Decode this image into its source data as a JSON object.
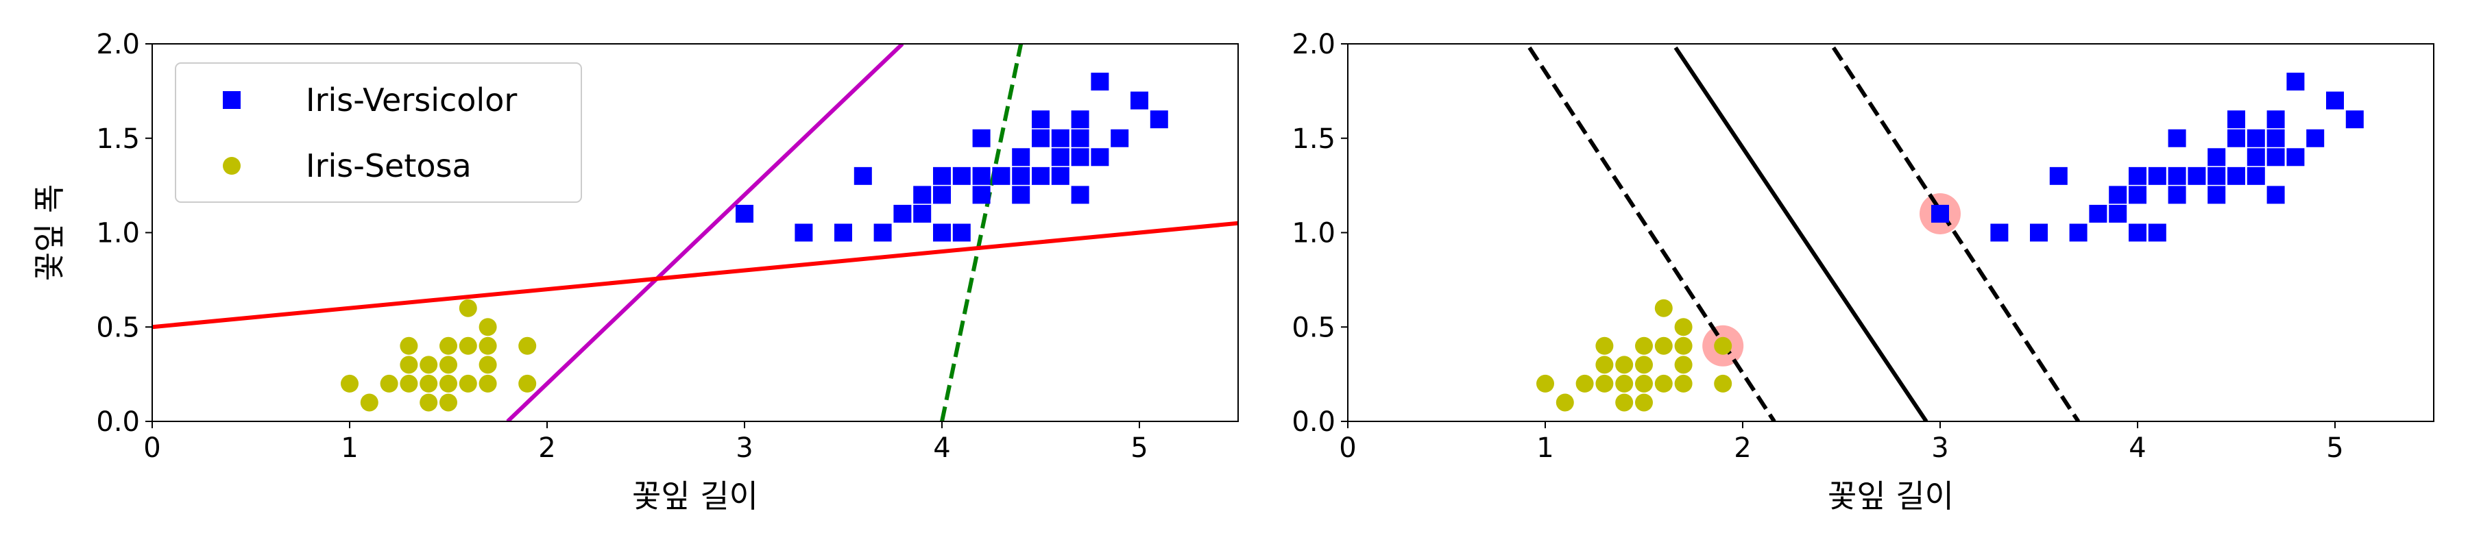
{
  "chart_data": [
    {
      "type": "scatter",
      "title": "",
      "xlabel": "꽃잎 길이",
      "ylabel": "꽃잎 폭",
      "xlim": [
        0,
        5.5
      ],
      "ylim": [
        0,
        2.0
      ],
      "xticks": [
        "0",
        "1",
        "2",
        "3",
        "4",
        "5"
      ],
      "yticks": [
        "0.0",
        "0.5",
        "1.0",
        "1.5",
        "2.0"
      ],
      "grid": false,
      "legend": {
        "placement": "upper-left",
        "entries": [
          "Iris-Versicolor",
          "Iris-Setosa"
        ]
      },
      "series": [
        {
          "name": "Iris-Versicolor",
          "marker": "square",
          "color": "#0000ff",
          "points": [
            [
              3.0,
              1.1
            ],
            [
              3.3,
              1.0
            ],
            [
              3.5,
              1.0
            ],
            [
              3.6,
              1.3
            ],
            [
              3.7,
              1.0
            ],
            [
              3.8,
              1.1
            ],
            [
              3.9,
              1.1
            ],
            [
              3.9,
              1.2
            ],
            [
              4.0,
              1.0
            ],
            [
              4.0,
              1.2
            ],
            [
              4.0,
              1.3
            ],
            [
              4.1,
              1.0
            ],
            [
              4.1,
              1.3
            ],
            [
              4.2,
              1.2
            ],
            [
              4.2,
              1.3
            ],
            [
              4.2,
              1.5
            ],
            [
              4.3,
              1.3
            ],
            [
              4.4,
              1.2
            ],
            [
              4.4,
              1.3
            ],
            [
              4.4,
              1.4
            ],
            [
              4.5,
              1.3
            ],
            [
              4.5,
              1.5
            ],
            [
              4.5,
              1.6
            ],
            [
              4.6,
              1.3
            ],
            [
              4.6,
              1.4
            ],
            [
              4.6,
              1.5
            ],
            [
              4.7,
              1.2
            ],
            [
              4.7,
              1.4
            ],
            [
              4.7,
              1.5
            ],
            [
              4.7,
              1.6
            ],
            [
              4.8,
              1.4
            ],
            [
              4.8,
              1.8
            ],
            [
              4.9,
              1.5
            ],
            [
              5.0,
              1.7
            ],
            [
              5.1,
              1.6
            ]
          ]
        },
        {
          "name": "Iris-Setosa",
          "marker": "circle",
          "color": "#bfbf00",
          "points": [
            [
              1.0,
              0.2
            ],
            [
              1.1,
              0.1
            ],
            [
              1.2,
              0.2
            ],
            [
              1.3,
              0.2
            ],
            [
              1.3,
              0.3
            ],
            [
              1.3,
              0.4
            ],
            [
              1.4,
              0.1
            ],
            [
              1.4,
              0.2
            ],
            [
              1.4,
              0.3
            ],
            [
              1.5,
              0.1
            ],
            [
              1.5,
              0.2
            ],
            [
              1.5,
              0.3
            ],
            [
              1.5,
              0.4
            ],
            [
              1.6,
              0.2
            ],
            [
              1.6,
              0.4
            ],
            [
              1.6,
              0.6
            ],
            [
              1.7,
              0.2
            ],
            [
              1.7,
              0.3
            ],
            [
              1.7,
              0.4
            ],
            [
              1.7,
              0.5
            ],
            [
              1.9,
              0.2
            ],
            [
              1.9,
              0.4
            ]
          ]
        }
      ],
      "lines": [
        {
          "color": "#008000",
          "style": "dashed",
          "points": [
            [
              4.0,
              0.0
            ],
            [
              4.4,
              2.0
            ]
          ]
        },
        {
          "color": "#bf00bf",
          "style": "solid",
          "points": [
            [
              1.8,
              0.0
            ],
            [
              3.8,
              2.0
            ]
          ]
        },
        {
          "color": "#ff0000",
          "style": "solid",
          "points": [
            [
              0.0,
              0.5
            ],
            [
              5.5,
              1.05
            ]
          ]
        }
      ]
    },
    {
      "type": "scatter",
      "title": "",
      "xlabel": "꽃잎 길이",
      "ylabel": "",
      "xlim": [
        0,
        5.5
      ],
      "ylim": [
        0,
        2.0
      ],
      "xticks": [
        "0",
        "1",
        "2",
        "3",
        "4",
        "5"
      ],
      "yticks": [
        "0.0",
        "0.5",
        "1.0",
        "1.5",
        "2.0"
      ],
      "grid": false,
      "series": [
        {
          "marker": "square",
          "color": "#0000ff",
          "points": [
            [
              3.0,
              1.1
            ],
            [
              3.3,
              1.0
            ],
            [
              3.5,
              1.0
            ],
            [
              3.6,
              1.3
            ],
            [
              3.7,
              1.0
            ],
            [
              3.8,
              1.1
            ],
            [
              3.9,
              1.1
            ],
            [
              3.9,
              1.2
            ],
            [
              4.0,
              1.0
            ],
            [
              4.0,
              1.2
            ],
            [
              4.0,
              1.3
            ],
            [
              4.1,
              1.0
            ],
            [
              4.1,
              1.3
            ],
            [
              4.2,
              1.2
            ],
            [
              4.2,
              1.3
            ],
            [
              4.2,
              1.5
            ],
            [
              4.3,
              1.3
            ],
            [
              4.4,
              1.2
            ],
            [
              4.4,
              1.3
            ],
            [
              4.4,
              1.4
            ],
            [
              4.5,
              1.3
            ],
            [
              4.5,
              1.5
            ],
            [
              4.5,
              1.6
            ],
            [
              4.6,
              1.3
            ],
            [
              4.6,
              1.4
            ],
            [
              4.6,
              1.5
            ],
            [
              4.7,
              1.2
            ],
            [
              4.7,
              1.4
            ],
            [
              4.7,
              1.5
            ],
            [
              4.7,
              1.6
            ],
            [
              4.8,
              1.4
            ],
            [
              4.8,
              1.8
            ],
            [
              4.9,
              1.5
            ],
            [
              5.0,
              1.7
            ],
            [
              5.1,
              1.6
            ]
          ]
        },
        {
          "marker": "circle",
          "color": "#bfbf00",
          "points": [
            [
              1.0,
              0.2
            ],
            [
              1.1,
              0.1
            ],
            [
              1.2,
              0.2
            ],
            [
              1.3,
              0.2
            ],
            [
              1.3,
              0.3
            ],
            [
              1.3,
              0.4
            ],
            [
              1.4,
              0.1
            ],
            [
              1.4,
              0.2
            ],
            [
              1.4,
              0.3
            ],
            [
              1.5,
              0.1
            ],
            [
              1.5,
              0.2
            ],
            [
              1.5,
              0.3
            ],
            [
              1.5,
              0.4
            ],
            [
              1.6,
              0.2
            ],
            [
              1.6,
              0.4
            ],
            [
              1.6,
              0.6
            ],
            [
              1.7,
              0.2
            ],
            [
              1.7,
              0.3
            ],
            [
              1.7,
              0.4
            ],
            [
              1.7,
              0.5
            ],
            [
              1.9,
              0.2
            ],
            [
              1.9,
              0.4
            ]
          ]
        }
      ],
      "support_vectors": {
        "color": "#ffaaaa",
        "points": [
          [
            1.9,
            0.4
          ],
          [
            3.0,
            1.1
          ]
        ]
      },
      "lines": [
        {
          "color": "#000000",
          "style": "solid",
          "points": [
            [
              1.66,
              1.98
            ],
            [
              2.93,
              0.0
            ]
          ]
        },
        {
          "color": "#000000",
          "style": "dashed",
          "points": [
            [
              0.92,
              1.98
            ],
            [
              2.16,
              0.0
            ]
          ]
        },
        {
          "color": "#000000",
          "style": "dashed",
          "points": [
            [
              2.46,
              1.98
            ],
            [
              3.7,
              0.0
            ]
          ]
        }
      ]
    }
  ]
}
